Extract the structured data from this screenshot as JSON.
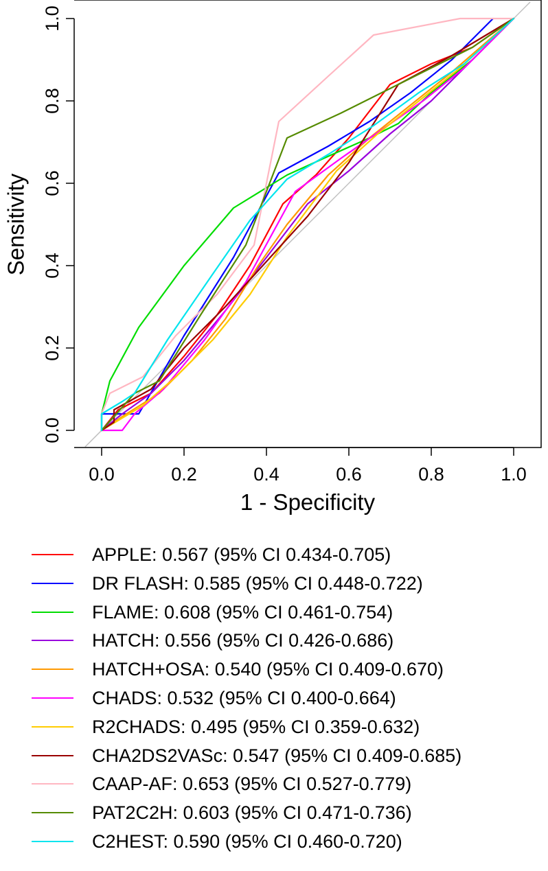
{
  "chart_data": {
    "type": "line",
    "title": "",
    "xlabel": "1 - Specificity",
    "ylabel": "Sensitivity",
    "xlim": [
      0.0,
      1.0
    ],
    "ylim": [
      0.0,
      1.0
    ],
    "x_ticks": [
      "0.0",
      "0.2",
      "0.4",
      "0.6",
      "0.8",
      "1.0"
    ],
    "y_ticks": [
      "0.0",
      "0.2",
      "0.4",
      "0.6",
      "0.8",
      "1.0"
    ],
    "legend_position": "bottom",
    "reference_line": {
      "name": "chance",
      "color": "#bfbfbf",
      "x": [
        -0.04,
        1.04
      ],
      "y": [
        -0.04,
        1.04
      ]
    },
    "series": [
      {
        "name": "APPLE",
        "label": "APPLE: 0.567 (95% CI 0.434-0.705)",
        "color": "#ff0000",
        "x": [
          0.0,
          0.04,
          0.12,
          0.2,
          0.28,
          0.36,
          0.44,
          0.52,
          0.6,
          0.7,
          0.8,
          0.9,
          1.0
        ],
        "y": [
          0.0,
          0.05,
          0.09,
          0.18,
          0.28,
          0.4,
          0.55,
          0.62,
          0.71,
          0.84,
          0.89,
          0.93,
          1.0
        ]
      },
      {
        "name": "DR FLASH",
        "label": "DR FLASH: 0.585 (95% CI 0.448-0.722)",
        "color": "#0000ff",
        "x": [
          0.0,
          0.0,
          0.09,
          0.2,
          0.32,
          0.43,
          0.55,
          0.65,
          0.75,
          0.85,
          0.95
        ],
        "y": [
          0.0,
          0.04,
          0.04,
          0.23,
          0.42,
          0.625,
          0.69,
          0.75,
          0.82,
          0.9,
          1.0
        ]
      },
      {
        "name": "FLAME",
        "label": "FLAME: 0.608 (95% CI 0.461-0.754)",
        "color": "#00dd00",
        "x": [
          0.0,
          0.0,
          0.02,
          0.09,
          0.2,
          0.32,
          0.45,
          0.56,
          0.65,
          0.72,
          0.8,
          0.9,
          1.0
        ],
        "y": [
          0.0,
          0.04,
          0.12,
          0.25,
          0.4,
          0.54,
          0.62,
          0.67,
          0.71,
          0.745,
          0.82,
          0.9,
          1.0
        ]
      },
      {
        "name": "HATCH",
        "label": "HATCH: 0.556 (95% CI 0.426-0.686)",
        "color": "#9900dd",
        "x": [
          0.0,
          0.05,
          0.12,
          0.2,
          0.3,
          0.4,
          0.5,
          0.6,
          0.7,
          0.8,
          0.9,
          1.0
        ],
        "y": [
          0.0,
          0.04,
          0.09,
          0.17,
          0.29,
          0.42,
          0.55,
          0.63,
          0.72,
          0.8,
          0.9,
          1.0
        ]
      },
      {
        "name": "HATCH+OSA",
        "label": "HATCH+OSA: 0.540 (95% CI 0.409-0.670)",
        "color": "#ff9900",
        "x": [
          0.0,
          0.06,
          0.14,
          0.22,
          0.3,
          0.38,
          0.45,
          0.55,
          0.65,
          0.75,
          0.85,
          1.0
        ],
        "y": [
          0.0,
          0.04,
          0.09,
          0.17,
          0.27,
          0.4,
          0.5,
          0.62,
          0.71,
          0.79,
          0.87,
          1.0
        ]
      },
      {
        "name": "CHADS",
        "label": "CHADS: 0.532 (95% CI 0.400-0.664)",
        "color": "#ff00ff",
        "x": [
          0.0,
          0.05,
          0.08,
          0.15,
          0.25,
          0.35,
          0.47,
          0.58,
          0.68,
          0.78,
          0.88,
          1.0
        ],
        "y": [
          0.0,
          0.0,
          0.04,
          0.1,
          0.22,
          0.36,
          0.58,
          0.66,
          0.73,
          0.8,
          0.88,
          1.0
        ]
      },
      {
        "name": "R2CHADS",
        "label": "R2CHADS: 0.495 (95% CI 0.359-0.632)",
        "color": "#ffcc00",
        "x": [
          0.0,
          0.1,
          0.18,
          0.27,
          0.36,
          0.45,
          0.57,
          0.67,
          0.77,
          0.87,
          1.0
        ],
        "y": [
          0.0,
          0.06,
          0.13,
          0.22,
          0.33,
          0.47,
          0.63,
          0.72,
          0.8,
          0.88,
          1.0
        ]
      },
      {
        "name": "CHA2DS2VASc",
        "label": "CHA2DS2VASc: 0.547 (95% CI 0.409-0.685)",
        "color": "#990000",
        "x": [
          0.0,
          0.03,
          0.03,
          0.12,
          0.2,
          0.3,
          0.4,
          0.5,
          0.6,
          0.72,
          0.85,
          1.0
        ],
        "y": [
          0.0,
          0.02,
          0.05,
          0.1,
          0.2,
          0.3,
          0.41,
          0.52,
          0.65,
          0.84,
          0.91,
          1.0
        ]
      },
      {
        "name": "CAAP-AF",
        "label": "CAAP-AF: 0.653 (95% CI 0.527-0.779)",
        "color": "#ffb6c1",
        "x": [
          0.0,
          0.02,
          0.1,
          0.18,
          0.28,
          0.37,
          0.43,
          0.55,
          0.66,
          0.87,
          1.0
        ],
        "y": [
          0.04,
          0.09,
          0.13,
          0.23,
          0.33,
          0.45,
          0.75,
          0.86,
          0.96,
          1.0,
          1.0
        ]
      },
      {
        "name": "PAT2C2H",
        "label": "PAT2C2H: 0.603 (95% CI 0.471-0.736)",
        "color": "#558b00",
        "x": [
          0.0,
          0.08,
          0.14,
          0.24,
          0.35,
          0.45,
          0.58,
          0.7,
          0.8,
          0.9,
          1.0
        ],
        "y": [
          0.0,
          0.09,
          0.12,
          0.28,
          0.45,
          0.71,
          0.77,
          0.83,
          0.88,
          0.93,
          1.0
        ]
      },
      {
        "name": "C2HEST",
        "label": "C2HEST: 0.590 (95% CI 0.460-0.720)",
        "color": "#00e5ee",
        "x": [
          0.0,
          0.0,
          0.05,
          0.08,
          0.16,
          0.27,
          0.36,
          0.45,
          0.55,
          0.66,
          0.77,
          0.88,
          1.0
        ],
        "y": [
          0.0,
          0.04,
          0.07,
          0.09,
          0.22,
          0.38,
          0.51,
          0.61,
          0.67,
          0.74,
          0.82,
          0.89,
          1.0
        ]
      }
    ]
  }
}
